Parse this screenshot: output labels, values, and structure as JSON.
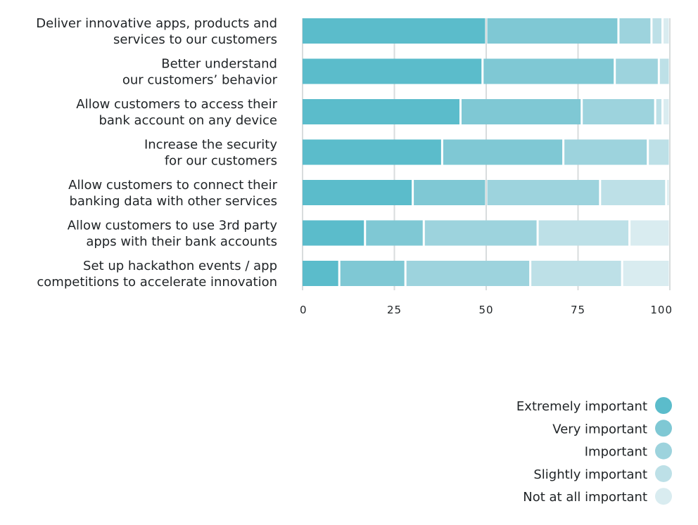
{
  "chart_data": {
    "type": "bar",
    "orientation": "horizontal",
    "stacked": true,
    "title": "",
    "xlabel": "",
    "ylabel": "",
    "xlim": [
      0,
      100
    ],
    "xticks": [
      0,
      25,
      50,
      75,
      100
    ],
    "grid": true,
    "legend_position": "bottom-right",
    "categories": [
      [
        "Deliver innovative apps, products and",
        "services  to our customers"
      ],
      [
        "Better understand",
        "our customers’ behavior"
      ],
      [
        "Allow customers  to access their",
        "bank account on any device"
      ],
      [
        "Increase  the security",
        "for our customers"
      ],
      [
        "Allow customers to connect their",
        "banking data with other services"
      ],
      [
        "Allow customers to use 3rd party",
        "apps with their bank accounts"
      ],
      [
        "Set up hackathon events / app",
        "competitions to accelerate innovation"
      ]
    ],
    "series": [
      {
        "name": "Extremely important",
        "color": "#5bbccb",
        "values": [
          50,
          49,
          43,
          38,
          30,
          17,
          10
        ]
      },
      {
        "name": "Very important",
        "color": "#7fc8d4",
        "values": [
          36,
          36,
          33,
          33,
          20,
          16,
          18
        ]
      },
      {
        "name": "Important",
        "color": "#9dd3dd",
        "values": [
          9,
          12,
          20,
          23,
          31,
          31,
          34
        ]
      },
      {
        "name": "Slightly important",
        "color": "#bde0e7",
        "values": [
          3,
          3,
          2,
          6,
          18,
          25,
          25
        ]
      },
      {
        "name": "Not at all important",
        "color": "#d9ecf0",
        "values": [
          2,
          0,
          2,
          0,
          1,
          11,
          13
        ]
      }
    ]
  }
}
